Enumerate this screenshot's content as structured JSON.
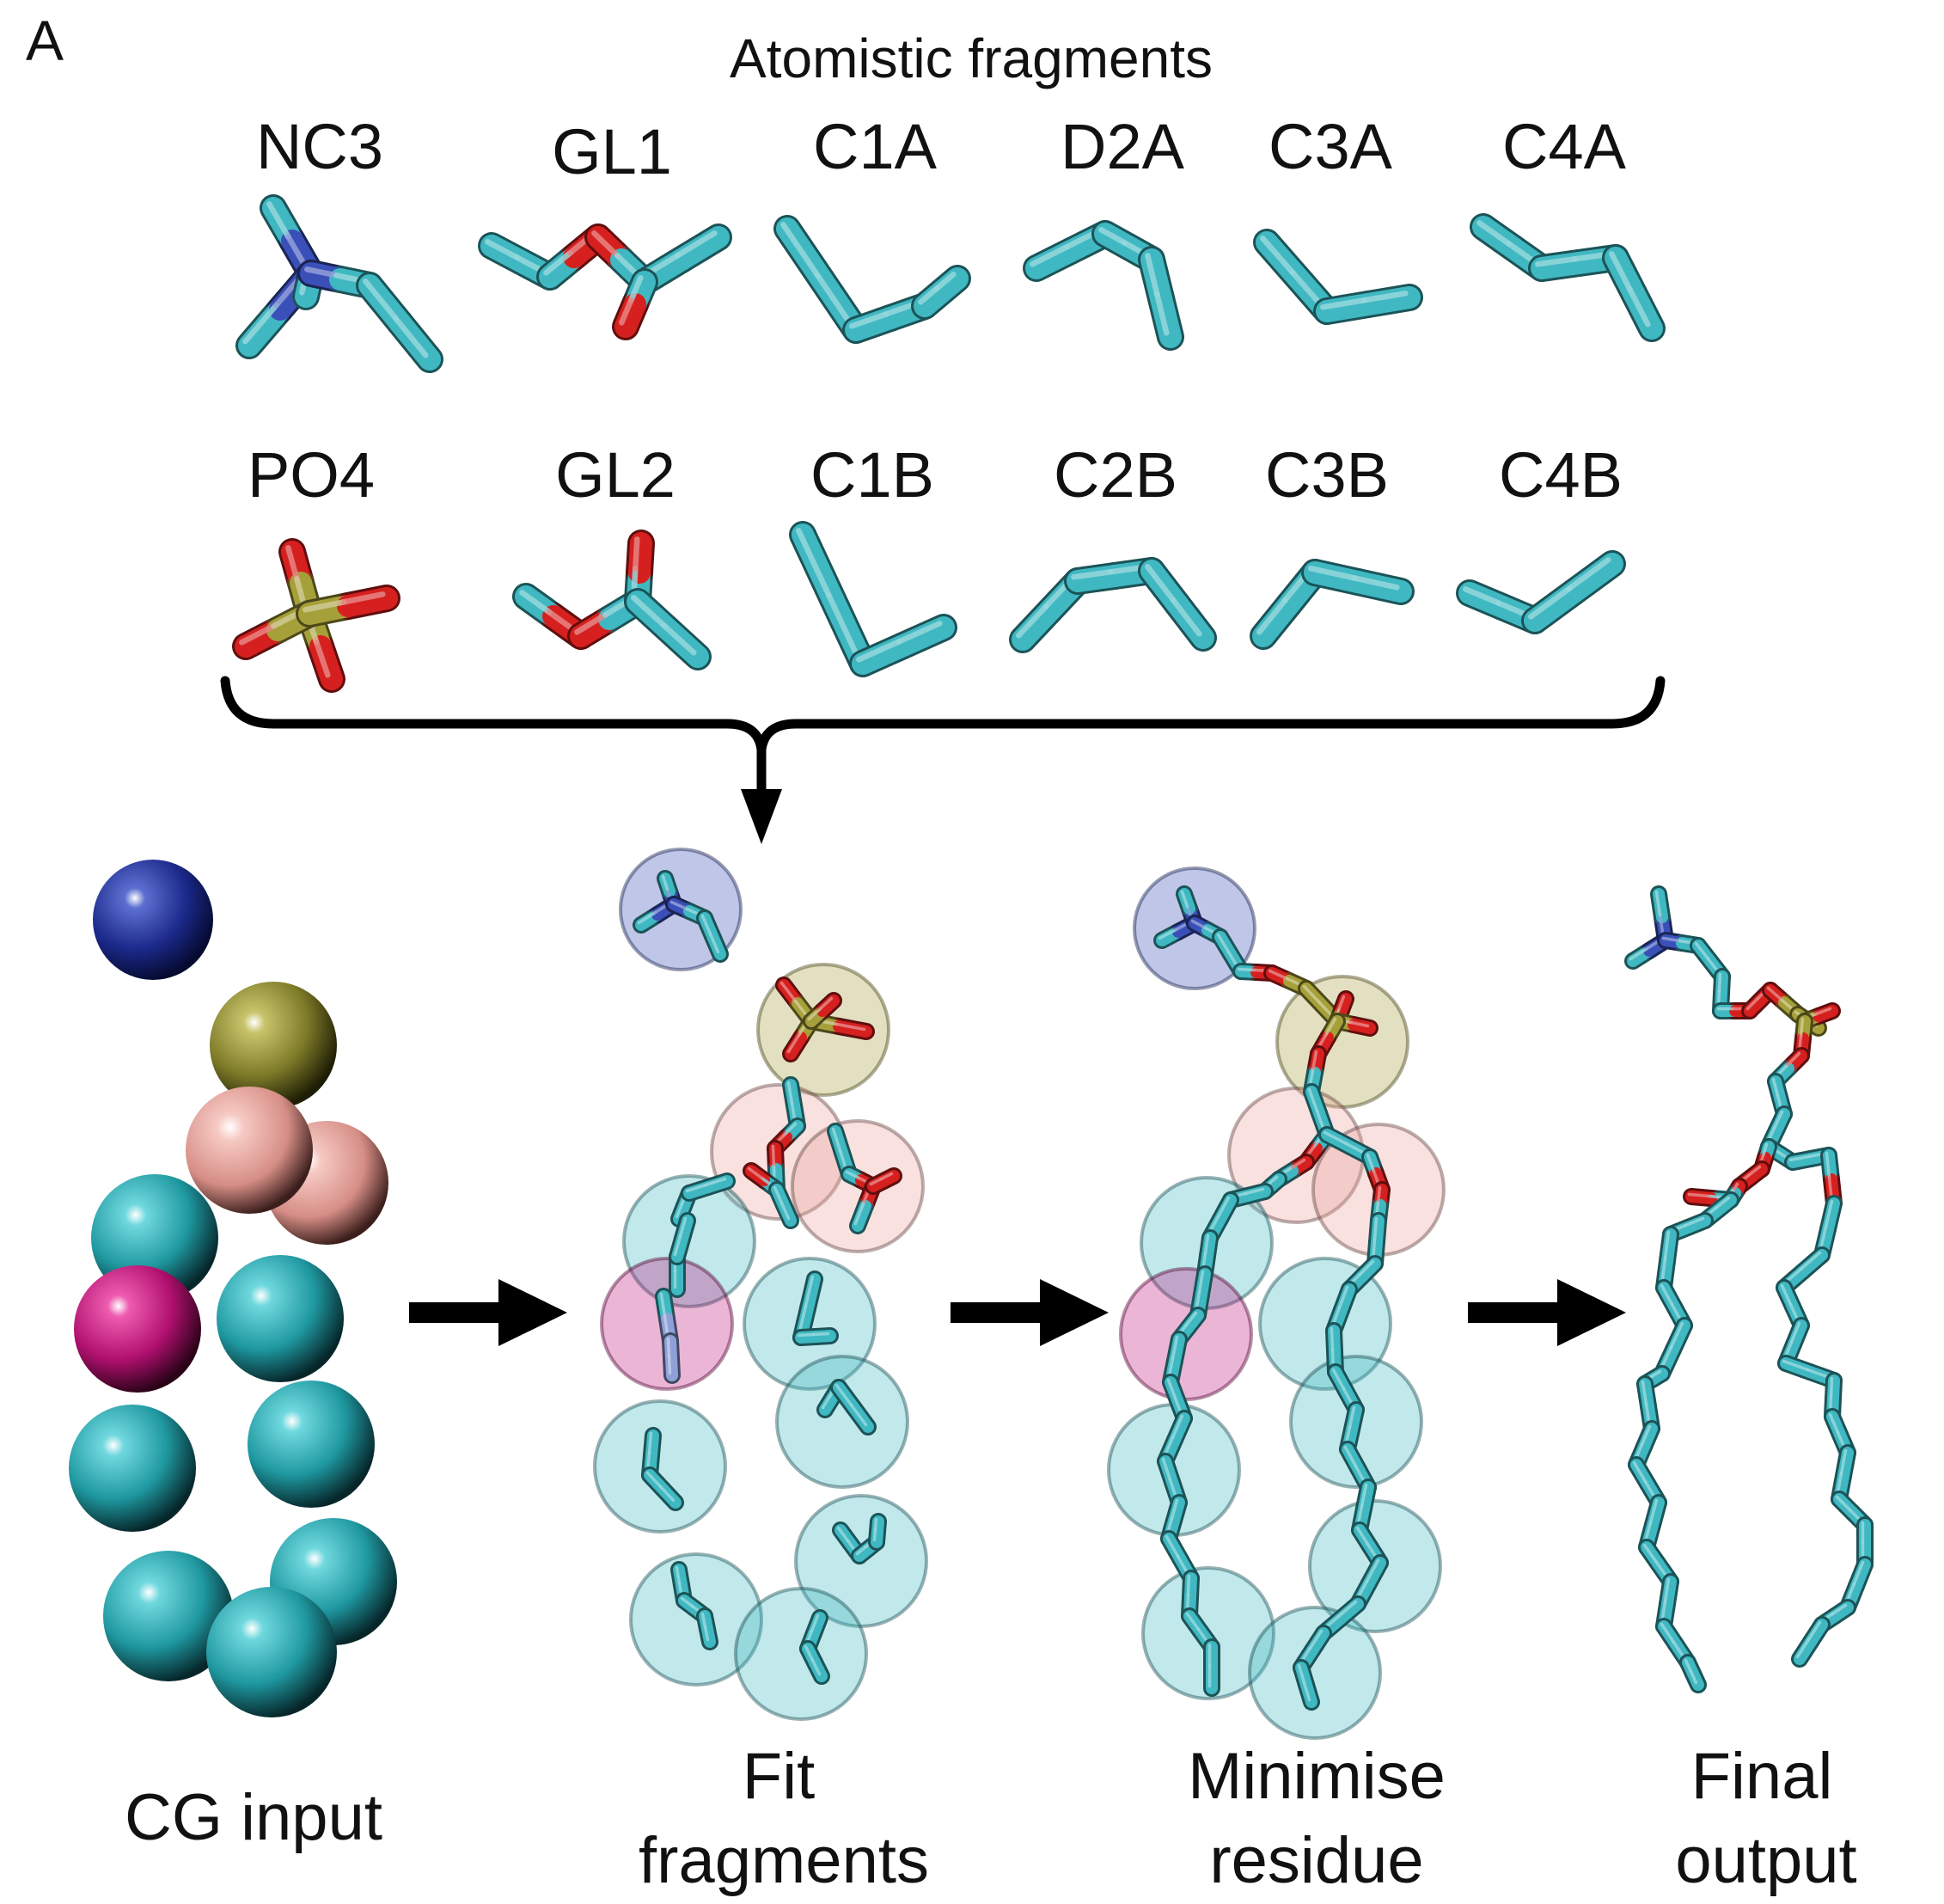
{
  "panel_label": "A",
  "header": "Atomistic fragments",
  "fragments_row1": [
    "NC3",
    "GL1",
    "C1A",
    "D2A",
    "C3A",
    "C4A"
  ],
  "fragments_row2": [
    "PO4",
    "GL2",
    "C1B",
    "C2B",
    "C3B",
    "C4B"
  ],
  "stages": [
    {
      "line1": "CG input",
      "line2": ""
    },
    {
      "line1": "Fit",
      "line2": "fragments"
    },
    {
      "line1": "Minimise",
      "line2": "residue"
    },
    {
      "line1": "Final",
      "line2": "output"
    }
  ],
  "colors": {
    "carbon": "#3fb8c2",
    "oxygen": "#d6201f",
    "nitrogen": "#3a4fb8",
    "phosphorus": "#a6a03a",
    "bead_nc3": "#1c2a8c",
    "bead_po4": "#7d7a28",
    "bead_glycerol": "#e9a39c",
    "bead_tail": "#2aa3ab",
    "bead_double": "#c2187e",
    "arrow": "#000000"
  }
}
